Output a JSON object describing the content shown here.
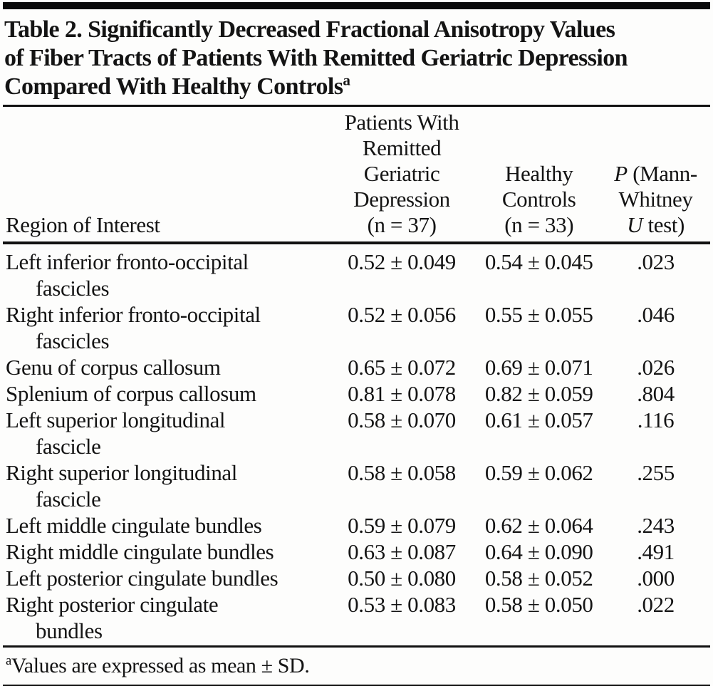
{
  "title": {
    "lines": [
      "Table 2. Significantly Decreased Fractional Anisotropy Values",
      "of Fiber Tracts of Patients With Remitted Geriatric Depression",
      "Compared With Healthy Controls"
    ],
    "superscript": "a"
  },
  "header": {
    "region": "Region of Interest",
    "patients_lines": [
      "Patients With",
      "Remitted",
      "Geriatric",
      "Depression",
      "(n = 37)"
    ],
    "controls_lines": [
      "Healthy",
      "Controls",
      "(n = 33)"
    ],
    "p_col": {
      "p_italic": "P",
      "line1_rest": " (Mann-",
      "line2": "Whitney",
      "u_italic": "U",
      "line3_rest": " test)"
    }
  },
  "table": {
    "rows": [
      {
        "region_line1": "Left inferior fronto-occipital",
        "region_line2": "fascicles",
        "patients": "0.52 ± 0.049",
        "controls": "0.54 ± 0.045",
        "p": ".023"
      },
      {
        "region_line1": "Right inferior fronto-occipital",
        "region_line2": "fascicles",
        "patients": "0.52 ± 0.056",
        "controls": "0.55 ± 0.055",
        "p": ".046"
      },
      {
        "region_line1": "Genu of corpus callosum",
        "region_line2": "",
        "patients": "0.65 ± 0.072",
        "controls": "0.69 ± 0.071",
        "p": ".026"
      },
      {
        "region_line1": "Splenium of corpus callosum",
        "region_line2": "",
        "patients": "0.81 ± 0.078",
        "controls": "0.82 ± 0.059",
        "p": ".804"
      },
      {
        "region_line1": "Left superior longitudinal",
        "region_line2": "fascicle",
        "patients": "0.58 ± 0.070",
        "controls": "0.61 ± 0.057",
        "p": ".116"
      },
      {
        "region_line1": "Right superior longitudinal",
        "region_line2": "fascicle",
        "patients": "0.58 ± 0.058",
        "controls": "0.59 ± 0.062",
        "p": ".255"
      },
      {
        "region_line1": "Left middle cingulate bundles",
        "region_line2": "",
        "patients": "0.59 ± 0.079",
        "controls": "0.62 ± 0.064",
        "p": ".243"
      },
      {
        "region_line1": "Right middle cingulate bundles",
        "region_line2": "",
        "patients": "0.63 ± 0.087",
        "controls": "0.64 ± 0.090",
        "p": ".491"
      },
      {
        "region_line1": "Left posterior cingulate bundles",
        "region_line2": "",
        "patients": "0.50 ± 0.080",
        "controls": "0.58 ± 0.052",
        "p": ".000"
      },
      {
        "region_line1": "Right posterior cingulate",
        "region_line2": "bundles",
        "patients": "0.53 ± 0.083",
        "controls": "0.58 ± 0.050",
        "p": ".022"
      }
    ]
  },
  "footnote": {
    "marker": "a",
    "text": "Values are expressed as mean ± SD."
  }
}
